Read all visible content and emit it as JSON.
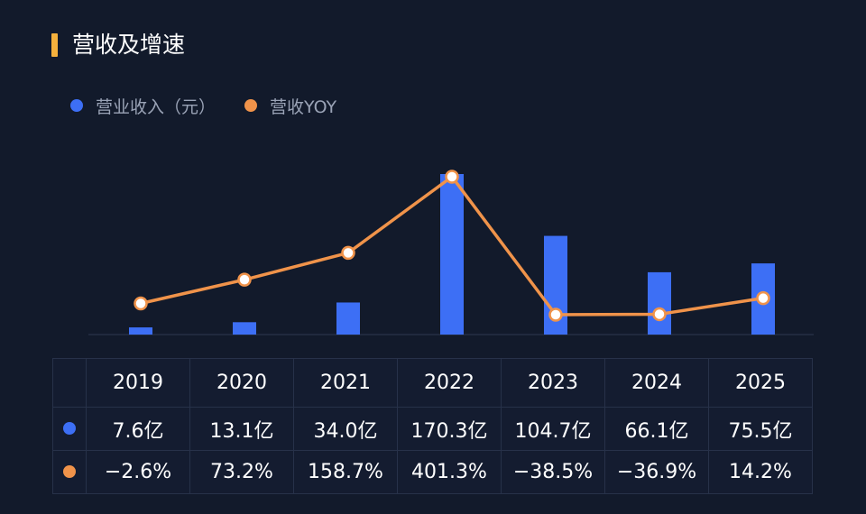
{
  "title": "营收及增速",
  "legend": [
    {
      "label": "营业收入（元）",
      "color": "#3d6ff5"
    },
    {
      "label": "营收YOY",
      "color": "#f0934a"
    }
  ],
  "chart_data": {
    "type": "bar",
    "categories": [
      "2019",
      "2020",
      "2021",
      "2022",
      "2023",
      "2024",
      "2025"
    ],
    "series": [
      {
        "name": "营业收入（元）",
        "type": "bar",
        "color": "#3d6ff5",
        "unit": "亿",
        "values": [
          7.6,
          13.1,
          34.0,
          170.3,
          104.7,
          66.1,
          75.5
        ],
        "labels": [
          "7.6亿",
          "13.1亿",
          "34.0亿",
          "170.3亿",
          "104.7亿",
          "66.1亿",
          "75.5亿"
        ]
      },
      {
        "name": "营收YOY",
        "type": "line",
        "color": "#f0934a",
        "unit": "%",
        "values": [
          -2.6,
          73.2,
          158.7,
          401.3,
          -38.5,
          -36.9,
          14.2
        ],
        "labels": [
          "−2.6%",
          "73.2%",
          "158.7%",
          "401.3%",
          "−38.5%",
          "−36.9%",
          "14.2%"
        ]
      }
    ],
    "xlabel": "",
    "ylabel": "",
    "grid": false,
    "legend_position": "top-left"
  }
}
